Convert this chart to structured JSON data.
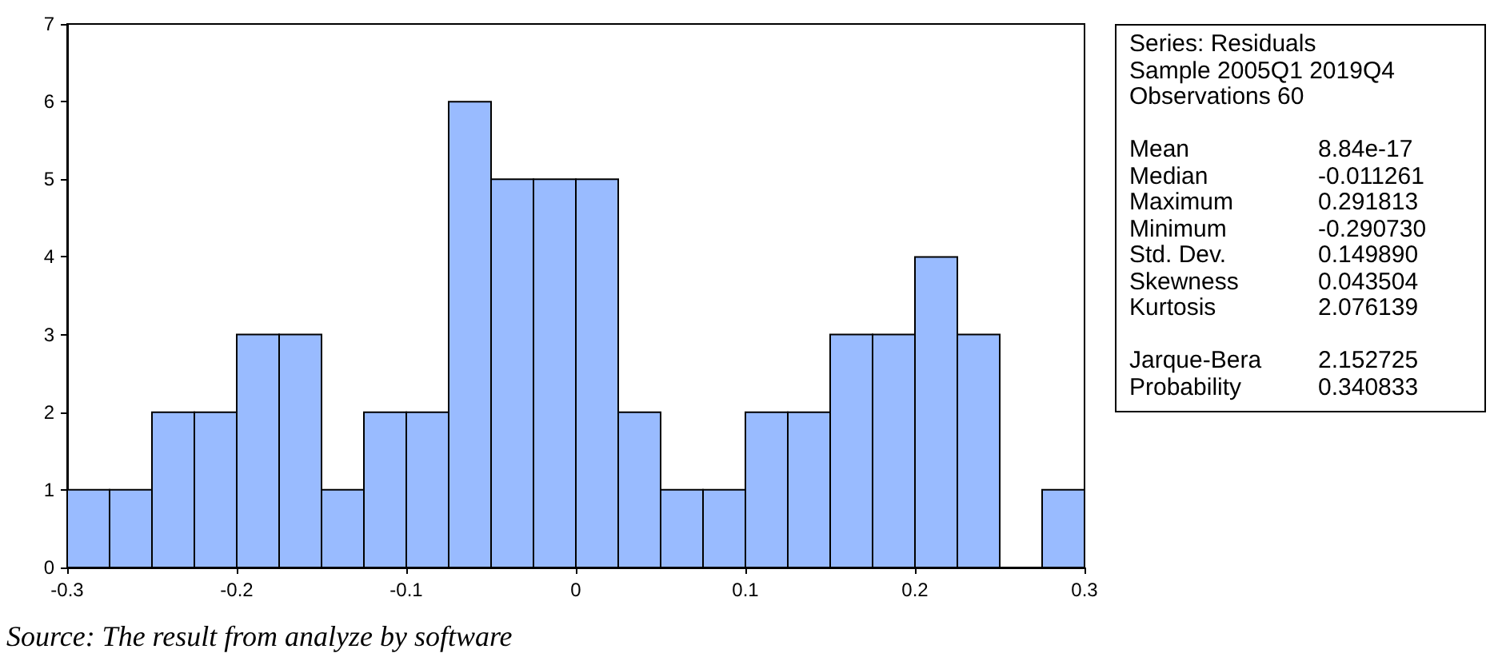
{
  "chart_data": [
    {
      "type": "histogram",
      "bins": [
        -0.3,
        -0.275,
        -0.25,
        -0.225,
        -0.2,
        -0.175,
        -0.15,
        -0.125,
        -0.1,
        -0.075,
        -0.05,
        -0.025,
        0,
        0.025,
        0.05,
        0.075,
        0.1,
        0.125,
        0.15,
        0.175,
        0.2,
        0.225,
        0.25,
        0.275,
        0.3
      ],
      "values": [
        1,
        1,
        2,
        2,
        3,
        3,
        1,
        2,
        2,
        6,
        5,
        5,
        5,
        2,
        1,
        1,
        2,
        2,
        3,
        3,
        4,
        3,
        0,
        1
      ],
      "color": "#99bbff",
      "xlim": [
        -0.3,
        0.3
      ],
      "xticks": [
        -0.3,
        -0.2,
        -0.1,
        0.0,
        0.1,
        0.2,
        0.3
      ],
      "ylim": [
        0,
        7
      ],
      "yticks": [
        0,
        1,
        2,
        3,
        4,
        5,
        6,
        7
      ],
      "grid": false,
      "annotations": [
        "Source: The result from analyze by software"
      ]
    },
    {
      "type": "other",
      "annotations": [
        "Series: Residuals",
        "Sample 2005Q1 2019Q4",
        "Observations 60"
      ],
      "categories": [
        "Mean",
        "Median",
        "Maximum",
        "Minimum",
        "Std. Dev.",
        "Skewness",
        "Kurtosis",
        null,
        "Jarque-Bera",
        "Probability"
      ],
      "value_labels": [
        "8.84e-17",
        "-0.011261",
        "0.291813",
        "-0.290730",
        "0.149890",
        "0.043504",
        "2.076139",
        null,
        "2.152725",
        "0.340833"
      ]
    }
  ]
}
